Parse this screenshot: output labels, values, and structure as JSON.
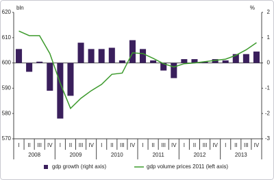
{
  "chart_data": {
    "type": "bar_line",
    "left_axis_label": "bln",
    "right_axis_label": "%",
    "categories": [
      "I",
      "II",
      "III",
      "IV",
      "I",
      "II",
      "III",
      "IV",
      "I",
      "II",
      "III",
      "IV",
      "I",
      "II",
      "III",
      "IV",
      "I",
      "II",
      "III",
      "IV",
      "I",
      "II",
      "III",
      "IV"
    ],
    "groups": [
      "2008",
      "2009",
      "2010",
      "2011",
      "2012",
      "2013"
    ],
    "series": [
      {
        "name": "gdp growth (right axis)",
        "color": "#3a1f5c",
        "axis": "y2",
        "values": [
          0.55,
          -0.35,
          0.05,
          -1.1,
          -2.2,
          -1.3,
          0.8,
          0.55,
          0.55,
          0.6,
          0.1,
          0.9,
          0.55,
          0.1,
          -0.3,
          -0.6,
          0.15,
          0.15,
          0.05,
          0.15,
          0.1,
          0.35,
          0.35,
          0.45
        ]
      },
      {
        "name": "gdp volume prices 2011 (left axis)",
        "color": "#3c9a2c",
        "axis": "y",
        "values": [
          612.6,
          610.8,
          610.8,
          603.7,
          592,
          582,
          586,
          589,
          591.5,
          595.5,
          596,
          604,
          603.7,
          601.8,
          599.7,
          598.4,
          599.7,
          600,
          600.5,
          601,
          601.5,
          603,
          605.2,
          608
        ]
      }
    ],
    "ylim": [
      570,
      620
    ],
    "yticks": [
      570,
      580,
      590,
      600,
      610,
      620
    ],
    "y2lim": [
      -3,
      2
    ],
    "y2ticks": [
      -3,
      -2,
      -1,
      0,
      1,
      2
    ]
  }
}
